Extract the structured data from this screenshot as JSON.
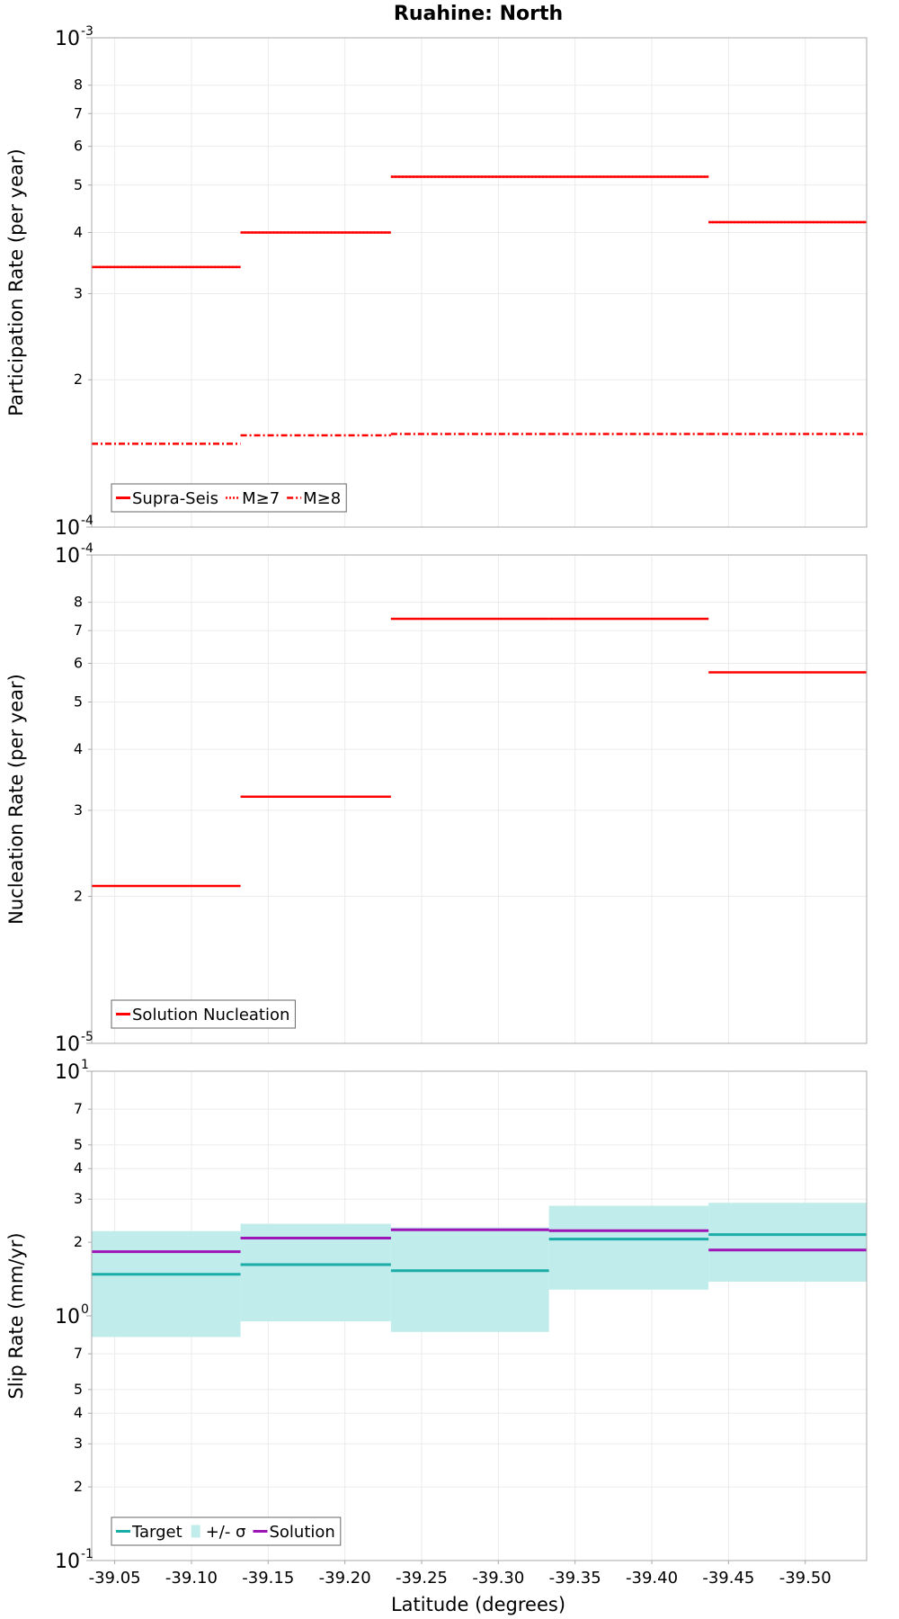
{
  "chart_data": {
    "title": "Ruahine: North",
    "xlabel": "Latitude (degrees)",
    "xlim": [
      -39.035,
      -39.54
    ],
    "x_ticks": [
      -39.05,
      -39.1,
      -39.15,
      -39.2,
      -39.25,
      -39.3,
      -39.35,
      -39.4,
      -39.45,
      -39.5
    ],
    "x_tick_labels": [
      "-39.05",
      "-39.10",
      "-39.15",
      "-39.20",
      "-39.25",
      "-39.30",
      "-39.35",
      "-39.40",
      "-39.45",
      "-39.50"
    ],
    "segment_edges": [
      -39.035,
      -39.132,
      -39.23,
      -39.333,
      -39.437,
      -39.54
    ],
    "panels": [
      {
        "type": "line",
        "scale": "log",
        "ylabel": "Participation Rate (per year)",
        "ylim": [
          0.0001,
          0.001
        ],
        "decade_labels": [
          {
            "base": "10",
            "exp": "-4",
            "value": 0.0001
          },
          {
            "base": "10",
            "exp": "-3",
            "value": 0.001
          }
        ],
        "minor_ticks": [
          {
            "value": 0.0002,
            "label": "2"
          },
          {
            "value": 0.0003,
            "label": "3"
          },
          {
            "value": 0.0004,
            "label": "4"
          },
          {
            "value": 0.0005,
            "label": "5"
          },
          {
            "value": 0.0006,
            "label": "6"
          },
          {
            "value": 0.0007,
            "label": "7"
          },
          {
            "value": 0.0008,
            "label": "8"
          }
        ],
        "series": [
          {
            "name": "Supra-Seis",
            "style": "solid",
            "color": "#ff0000",
            "values": [
              0.00034,
              0.0004,
              0.00052,
              0.00052,
              0.00042
            ]
          },
          {
            "name": "M≥7",
            "style": "dotted",
            "color": "#ff0000",
            "values": [
              0.00034,
              0.0004,
              0.00052,
              0.00052,
              0.00042
            ]
          },
          {
            "name": "M≥8",
            "style": "dashdot",
            "color": "#ff0000",
            "values": [
              0.000148,
              0.000154,
              0.000155,
              0.000155,
              0.000155
            ]
          }
        ],
        "legend": {
          "placement": "bottom-left",
          "entries": [
            "Supra-Seis",
            "M≥7",
            "M≥8"
          ]
        }
      },
      {
        "type": "line",
        "scale": "log",
        "ylabel": "Nucleation Rate (per year)",
        "ylim": [
          1e-05,
          0.0001
        ],
        "decade_labels": [
          {
            "base": "10",
            "exp": "-5",
            "value": 1e-05
          },
          {
            "base": "10",
            "exp": "-4",
            "value": 0.0001
          }
        ],
        "minor_ticks": [
          {
            "value": 2e-05,
            "label": "2"
          },
          {
            "value": 3e-05,
            "label": "3"
          },
          {
            "value": 4e-05,
            "label": "4"
          },
          {
            "value": 5e-05,
            "label": "5"
          },
          {
            "value": 6e-05,
            "label": "6"
          },
          {
            "value": 7e-05,
            "label": "7"
          },
          {
            "value": 8e-05,
            "label": "8"
          }
        ],
        "series": [
          {
            "name": "Solution Nucleation",
            "style": "solid",
            "color": "#ff0000",
            "values": [
              2.1e-05,
              3.2e-05,
              7.4e-05,
              7.4e-05,
              5.75e-05
            ]
          }
        ],
        "legend": {
          "placement": "bottom-left",
          "entries": [
            "Solution Nucleation"
          ]
        }
      },
      {
        "type": "area",
        "scale": "log",
        "ylabel": "Slip Rate (mm/yr)",
        "ylim": [
          0.1,
          10
        ],
        "decade_labels": [
          {
            "base": "10",
            "exp": "-1",
            "value": 0.1
          },
          {
            "base": "10",
            "exp": "0",
            "value": 1
          },
          {
            "base": "10",
            "exp": "1",
            "value": 10
          }
        ],
        "minor_ticks": [
          {
            "value": 0.2,
            "label": "2"
          },
          {
            "value": 0.3,
            "label": "3"
          },
          {
            "value": 0.4,
            "label": "4"
          },
          {
            "value": 0.5,
            "label": "5"
          },
          {
            "value": 0.7,
            "label": "7"
          },
          {
            "value": 2,
            "label": "2"
          },
          {
            "value": 3,
            "label": "3"
          },
          {
            "value": 4,
            "label": "4"
          },
          {
            "value": 5,
            "label": "5"
          },
          {
            "value": 7,
            "label": "7"
          }
        ],
        "band": {
          "name": "+/- σ",
          "color": "#c0ecec",
          "low": [
            0.82,
            0.95,
            0.86,
            1.28,
            1.38
          ],
          "high": [
            2.22,
            2.38,
            2.3,
            2.82,
            2.9
          ]
        },
        "series": [
          {
            "name": "Target",
            "style": "solid",
            "color": "#1aada8",
            "values": [
              1.48,
              1.62,
              1.53,
              2.06,
              2.15
            ]
          },
          {
            "name": "Solution",
            "style": "solid",
            "color": "#9d14b7",
            "values": [
              1.83,
              2.08,
              2.25,
              2.23,
              1.86
            ]
          }
        ],
        "legend": {
          "placement": "bottom-left",
          "entries": [
            "Target",
            "+/- σ",
            "Solution"
          ]
        }
      }
    ]
  }
}
